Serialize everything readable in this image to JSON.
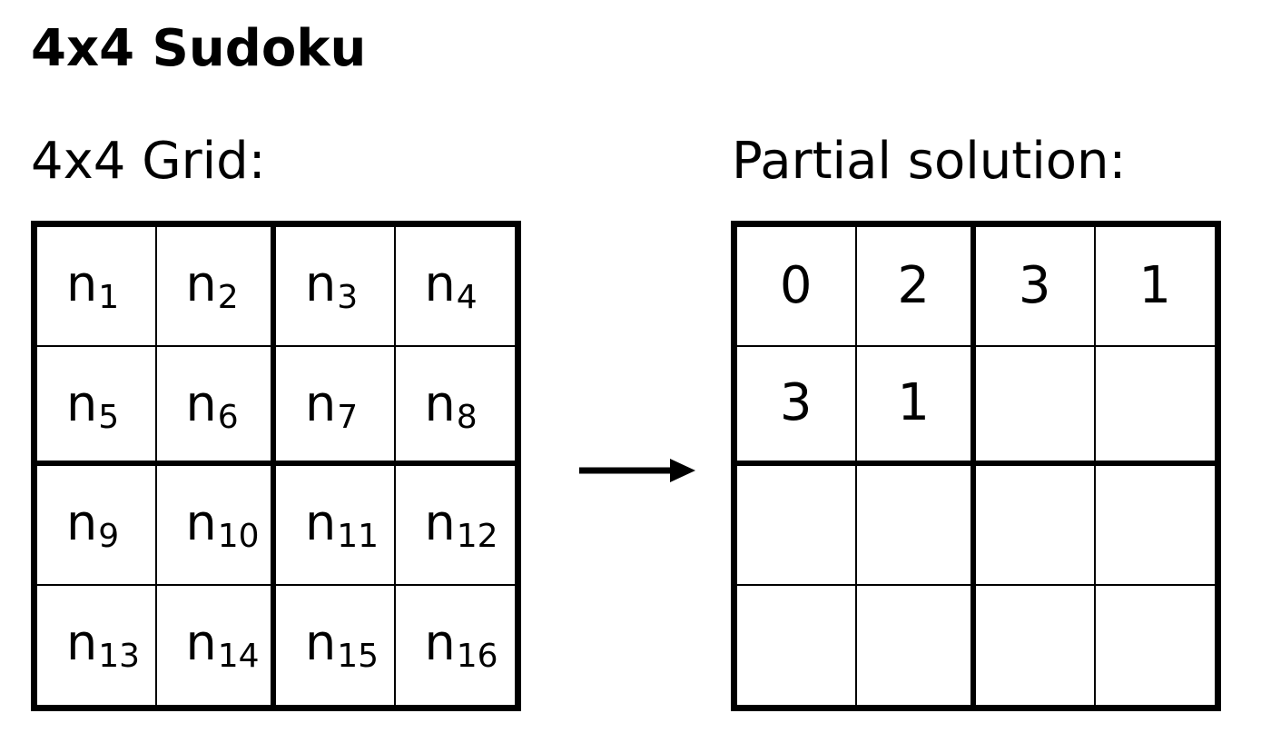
{
  "title": "4x4 Sudoku",
  "left_panel": {
    "label": "4x4 Grid:",
    "cells": [
      {
        "var": "n",
        "index": "1"
      },
      {
        "var": "n",
        "index": "2"
      },
      {
        "var": "n",
        "index": "3"
      },
      {
        "var": "n",
        "index": "4"
      },
      {
        "var": "n",
        "index": "5"
      },
      {
        "var": "n",
        "index": "6"
      },
      {
        "var": "n",
        "index": "7"
      },
      {
        "var": "n",
        "index": "8"
      },
      {
        "var": "n",
        "index": "9"
      },
      {
        "var": "n",
        "index": "10"
      },
      {
        "var": "n",
        "index": "11"
      },
      {
        "var": "n",
        "index": "12"
      },
      {
        "var": "n",
        "index": "13"
      },
      {
        "var": "n",
        "index": "14"
      },
      {
        "var": "n",
        "index": "15"
      },
      {
        "var": "n",
        "index": "16"
      }
    ]
  },
  "right_panel": {
    "label": "Partial solution:",
    "cells": [
      "0",
      "2",
      "3",
      "1",
      "3",
      "1",
      "",
      "",
      "",
      "",
      "",
      "",
      "",
      "",
      "",
      ""
    ]
  },
  "arrow": {
    "icon": "right-arrow-icon",
    "color": "#000000"
  }
}
